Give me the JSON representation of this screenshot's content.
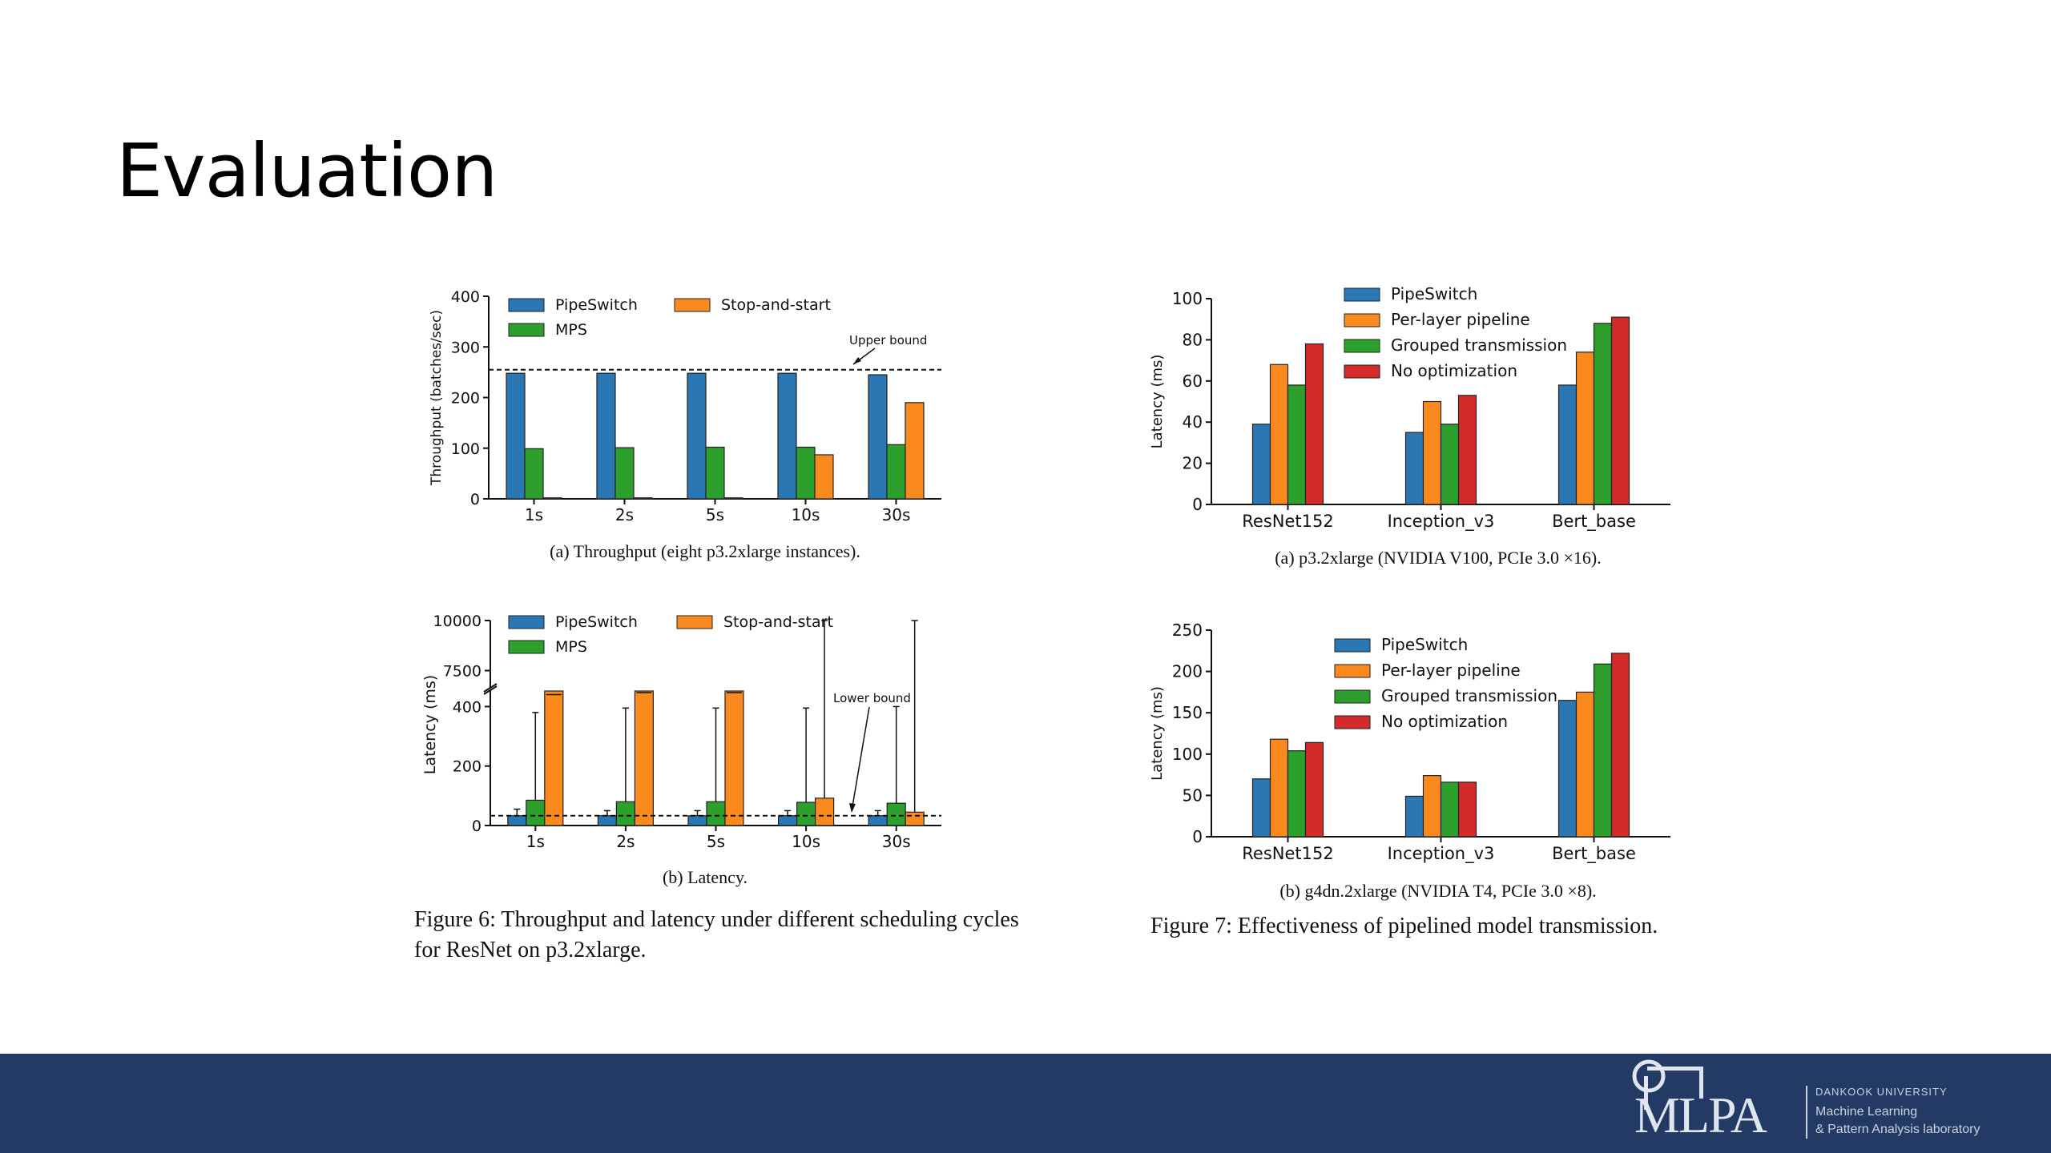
{
  "slide": {
    "title": "Evaluation"
  },
  "colors": {
    "blue": "#2b77b4",
    "orange": "#fb8a1e",
    "green": "#2c9f2c",
    "red": "#d42a2a",
    "footer": "#223a64"
  },
  "figure6": {
    "caption": "Figure 6: Throughput and latency under different scheduling cycles for ResNet on p3.2xlarge."
  },
  "figure7": {
    "caption": "Figure 7: Effectiveness of pipelined model transmission."
  },
  "footer": {
    "logo_text": "MLPA",
    "university": "DANKOOK UNIVERSITY",
    "lab_line1": "Machine Learning",
    "lab_line2": "& Pattern Analysis laboratory"
  },
  "chart_data": [
    {
      "id": "fig6a",
      "type": "bar",
      "caption": "(a) Throughput (eight p3.2xlarge instances).",
      "ylabel": "Throughput (batches/sec)",
      "xlabel": "",
      "categories": [
        "1s",
        "2s",
        "5s",
        "10s",
        "30s"
      ],
      "ylim": [
        0,
        400
      ],
      "yticks": [
        0,
        100,
        200,
        300,
        400
      ],
      "series": [
        {
          "name": "PipeSwitch",
          "color": "#2b77b4",
          "values": [
            248,
            248,
            248,
            248,
            245
          ]
        },
        {
          "name": "MPS",
          "color": "#2c9f2c",
          "values": [
            99,
            101,
            102,
            102,
            107
          ]
        },
        {
          "name": "Stop-and-start",
          "color": "#fb8a1e",
          "values": [
            2,
            2,
            2,
            87,
            190
          ]
        }
      ],
      "legend": [
        {
          "name": "PipeSwitch",
          "color": "#2b77b4"
        },
        {
          "name": "Stop-and-start",
          "color": "#fb8a1e"
        },
        {
          "name": "MPS",
          "color": "#2c9f2c"
        }
      ],
      "reference_line": {
        "value": 255,
        "label": "Upper bound"
      },
      "legend_position": "top-left",
      "grid": false
    },
    {
      "id": "fig6b",
      "type": "bar",
      "caption": "(b) Latency.",
      "ylabel": "Latency (ms)",
      "xlabel": "",
      "categories": [
        "1s",
        "2s",
        "5s",
        "10s",
        "30s"
      ],
      "ylim": [
        0,
        10000
      ],
      "yticks": [
        0,
        200,
        400,
        7500,
        10000
      ],
      "broken_axis": {
        "lower": [
          0,
          420
        ],
        "upper": [
          7000,
          10000
        ]
      },
      "series": [
        {
          "name": "PipeSwitch",
          "color": "#2b77b4",
          "values": [
            33,
            33,
            33,
            33,
            33
          ],
          "error_top": [
            55,
            50,
            50,
            50,
            50
          ]
        },
        {
          "name": "MPS",
          "color": "#2c9f2c",
          "values": [
            85,
            80,
            80,
            78,
            75
          ],
          "error_top": [
            380,
            395,
            395,
            395,
            400
          ]
        },
        {
          "name": "Stop-and-start",
          "color": "#fb8a1e",
          "values": [
            6200,
            6200,
            6300,
            92,
            45
          ],
          "error_top": [
            6300,
            6400,
            6400,
            10000,
            10000
          ]
        }
      ],
      "legend": [
        {
          "name": "PipeSwitch",
          "color": "#2b77b4"
        },
        {
          "name": "Stop-and-start",
          "color": "#fb8a1e"
        },
        {
          "name": "MPS",
          "color": "#2c9f2c"
        }
      ],
      "reference_line": {
        "value": 33,
        "label": "Lower bound"
      },
      "legend_position": "top-left",
      "grid": false
    },
    {
      "id": "fig7a",
      "type": "bar",
      "caption": "(a) p3.2xlarge (NVIDIA V100, PCIe 3.0 ×16).",
      "ylabel": "Latency (ms)",
      "xlabel": "",
      "categories": [
        "ResNet152",
        "Inception_v3",
        "Bert_base"
      ],
      "ylim": [
        0,
        100
      ],
      "yticks": [
        0,
        20,
        40,
        60,
        80,
        100
      ],
      "series": [
        {
          "name": "PipeSwitch",
          "color": "#2b77b4",
          "values": [
            39,
            35,
            58
          ]
        },
        {
          "name": "Per-layer pipeline",
          "color": "#fb8a1e",
          "values": [
            68,
            50,
            74
          ]
        },
        {
          "name": "Grouped transmission",
          "color": "#2c9f2c",
          "values": [
            58,
            39,
            88
          ]
        },
        {
          "name": "No optimization",
          "color": "#d42a2a",
          "values": [
            78,
            53,
            91
          ]
        }
      ],
      "legend_position": "top-center",
      "grid": false
    },
    {
      "id": "fig7b",
      "type": "bar",
      "caption": "(b) g4dn.2xlarge (NVIDIA T4, PCIe 3.0 ×8).",
      "ylabel": "Latency (ms)",
      "xlabel": "",
      "categories": [
        "ResNet152",
        "Inception_v3",
        "Bert_base"
      ],
      "ylim": [
        0,
        250
      ],
      "yticks": [
        0,
        50,
        100,
        150,
        200,
        250
      ],
      "series": [
        {
          "name": "PipeSwitch",
          "color": "#2b77b4",
          "values": [
            70,
            49,
            165
          ]
        },
        {
          "name": "Per-layer pipeline",
          "color": "#fb8a1e",
          "values": [
            118,
            74,
            175
          ]
        },
        {
          "name": "Grouped transmission",
          "color": "#2c9f2c",
          "values": [
            104,
            66,
            209
          ]
        },
        {
          "name": "No optimization",
          "color": "#d42a2a",
          "values": [
            114,
            66,
            222
          ]
        }
      ],
      "legend_position": "top-center",
      "grid": false
    }
  ]
}
